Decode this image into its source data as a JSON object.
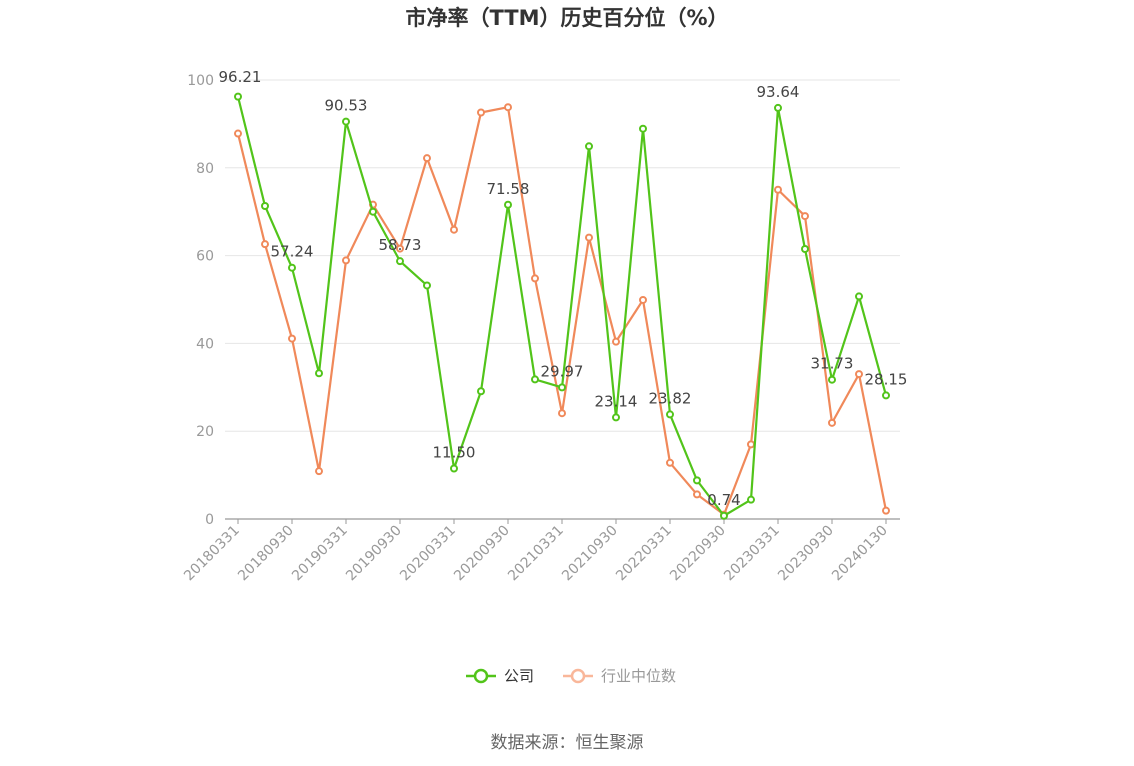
{
  "chart_data": {
    "type": "line",
    "title": "市净率（TTM）历史百分位（%）",
    "source": "数据来源：恒生聚源",
    "ylim": [
      0,
      100
    ],
    "yticks": [
      0,
      20,
      40,
      60,
      80,
      100
    ],
    "x": [
      "20180331",
      "20180630",
      "20180930",
      "20181231",
      "20190331",
      "20190630",
      "20190930",
      "20191231",
      "20200331",
      "20200630",
      "20200930",
      "20201231",
      "20210331",
      "20210630",
      "20210930",
      "20211231",
      "20220331",
      "20220630",
      "20220930",
      "20221231",
      "20230331",
      "20230630",
      "20230930",
      "20231231",
      "20240130"
    ],
    "xtick_labels": [
      "20180331",
      "20180930",
      "20190331",
      "20190930",
      "20200331",
      "20200930",
      "20210331",
      "20210930",
      "20220331",
      "20220930",
      "20230331",
      "20230930",
      "20240130"
    ],
    "grid": true,
    "legend_position": "bottom",
    "series": [
      {
        "name": "公司",
        "color": "#52c41a",
        "values": [
          96.21,
          71.3,
          57.24,
          33.2,
          90.53,
          70.0,
          58.73,
          53.2,
          11.5,
          29.1,
          71.58,
          31.8,
          29.97,
          84.9,
          23.14,
          88.9,
          23.82,
          8.8,
          0.74,
          4.4,
          93.64,
          61.5,
          31.73,
          50.7,
          28.15
        ],
        "labels": {
          "0": "96.21",
          "2": "57.24",
          "4": "90.53",
          "6": "58.73",
          "8": "11.50",
          "10": "71.58",
          "12": "29.97",
          "14": "23.14",
          "16": "23.82",
          "18": "0.74",
          "20": "93.64",
          "22": "31.73",
          "24": "28.15"
        }
      },
      {
        "name": "行业中位数",
        "color": "#f0895a",
        "legend_color": "#f9b79a",
        "values": [
          87.8,
          62.6,
          41.1,
          10.9,
          58.9,
          71.6,
          61.6,
          82.2,
          65.9,
          92.6,
          93.8,
          54.8,
          24.1,
          64.1,
          40.4,
          49.9,
          12.8,
          5.6,
          1.0,
          17.0,
          75.0,
          69.0,
          21.9,
          33.0,
          1.9
        ]
      }
    ]
  }
}
